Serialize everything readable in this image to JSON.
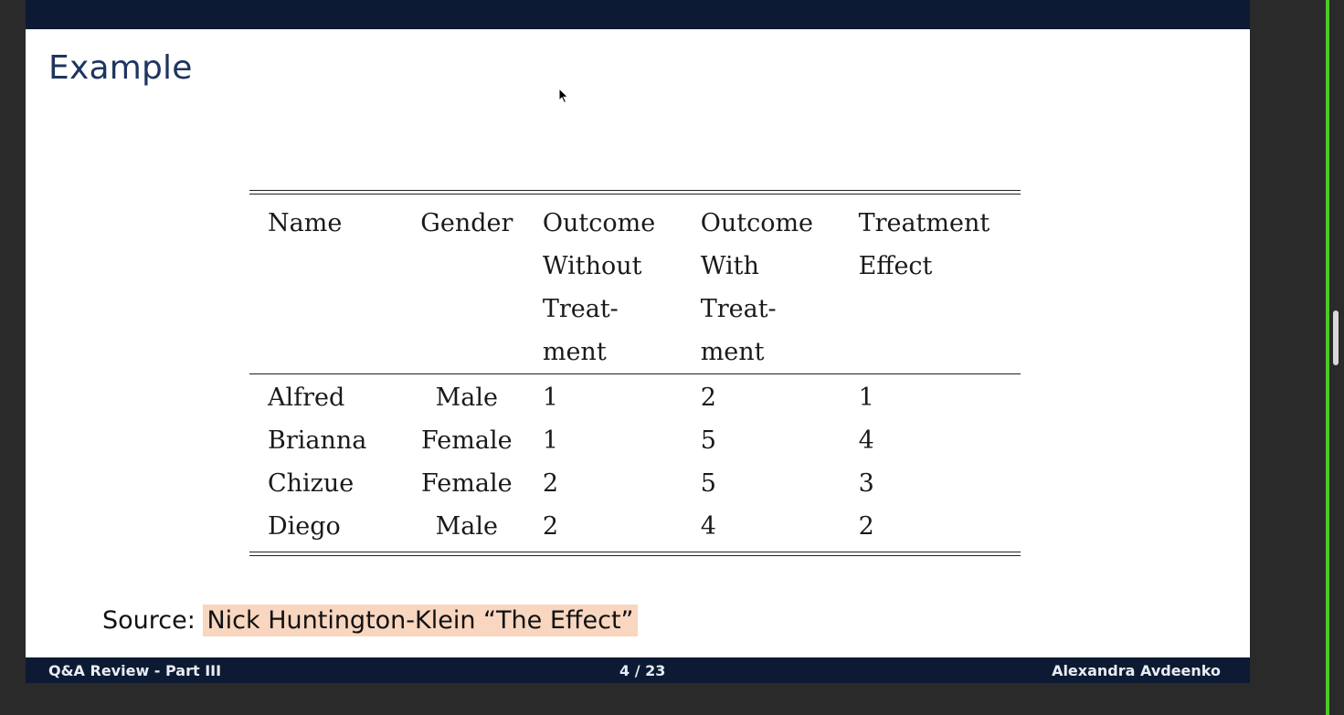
{
  "slide": {
    "title": "Example",
    "source_prefix": "Source:",
    "source_text": "Nick Huntington-Klein “The Effect”"
  },
  "table": {
    "headers": [
      [
        "Name"
      ],
      [
        "Gender"
      ],
      [
        "Outcome",
        "Without",
        "Treat-",
        "ment"
      ],
      [
        "Outcome",
        "With",
        "Treat-",
        "ment"
      ],
      [
        "Treatment",
        "Effect"
      ]
    ],
    "rows": [
      [
        "Alfred",
        "Male",
        "1",
        "2",
        "1"
      ],
      [
        "Brianna",
        "Female",
        "1",
        "5",
        "4"
      ],
      [
        "Chizue",
        "Female",
        "2",
        "5",
        "3"
      ],
      [
        "Diego",
        "Male",
        "2",
        "4",
        "2"
      ]
    ]
  },
  "footer": {
    "left": "Q&A Review - Part III",
    "center": "4 / 23",
    "right": "Alexandra Avdeenko"
  },
  "colors": {
    "bar": "#0c1a33",
    "title": "#1f3560",
    "highlight": "#f8d6c0",
    "accent_green": "#4cc72c"
  },
  "icons": {
    "cursor": "mouse-pointer-icon"
  }
}
